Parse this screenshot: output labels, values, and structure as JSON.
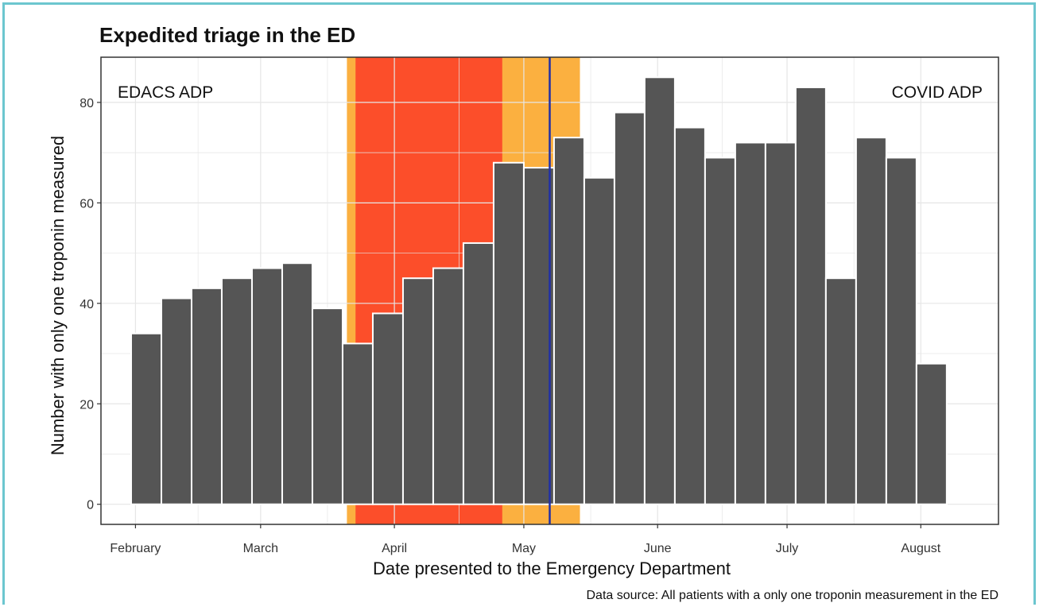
{
  "chart_data": {
    "type": "bar",
    "title": "Expedited triage in the ED",
    "xlabel": "Date presented to the Emergency Department",
    "ylabel": "Number with only one troponin measured",
    "caption": "Data source: All patients with a only one troponin measurement in the ED",
    "annotations": {
      "left": "EDACS ADP",
      "right": "COVID ADP"
    },
    "x_axis": {
      "type": "date",
      "range": [
        "2020-01-24",
        "2020-08-19"
      ],
      "ticks": [
        {
          "label": "February",
          "date": "2020-02-01"
        },
        {
          "label": "March",
          "date": "2020-03-01"
        },
        {
          "label": "April",
          "date": "2020-04-01"
        },
        {
          "label": "May",
          "date": "2020-05-01"
        },
        {
          "label": "June",
          "date": "2020-06-01"
        },
        {
          "label": "July",
          "date": "2020-07-01"
        },
        {
          "label": "August",
          "date": "2020-08-01"
        }
      ]
    },
    "y_axis": {
      "range": [
        -4,
        89
      ],
      "ticks": [
        0,
        20,
        40,
        60,
        80
      ]
    },
    "grid": true,
    "weeks": [
      "2020-02-03",
      "2020-02-10",
      "2020-02-17",
      "2020-02-24",
      "2020-03-02",
      "2020-03-09",
      "2020-03-16",
      "2020-03-23",
      "2020-03-30",
      "2020-04-06",
      "2020-04-13",
      "2020-04-20",
      "2020-04-27",
      "2020-05-04",
      "2020-05-11",
      "2020-05-18",
      "2020-05-25",
      "2020-06-01",
      "2020-06-08",
      "2020-06-15",
      "2020-06-22",
      "2020-06-29",
      "2020-07-06",
      "2020-07-13",
      "2020-07-20",
      "2020-07-27",
      "2020-08-03"
    ],
    "values": [
      34,
      41,
      43,
      45,
      47,
      48,
      39,
      32,
      38,
      45,
      47,
      52,
      68,
      67,
      73,
      65,
      78,
      85,
      75,
      69,
      72,
      72,
      83,
      45,
      73,
      69,
      28
    ],
    "shaded_periods": [
      {
        "start": "2020-03-21",
        "end": "2020-05-14",
        "color": "#fbb040"
      },
      {
        "start": "2020-03-23",
        "end": "2020-04-26",
        "color": "#fc4e2a"
      }
    ],
    "vline": {
      "date": "2020-05-07",
      "color": "#1f2fa8"
    },
    "colors": {
      "bar": "#555555",
      "bar_outline": "#ffffff",
      "grid": "#e6e6e6",
      "panel_border": "#333333"
    }
  }
}
